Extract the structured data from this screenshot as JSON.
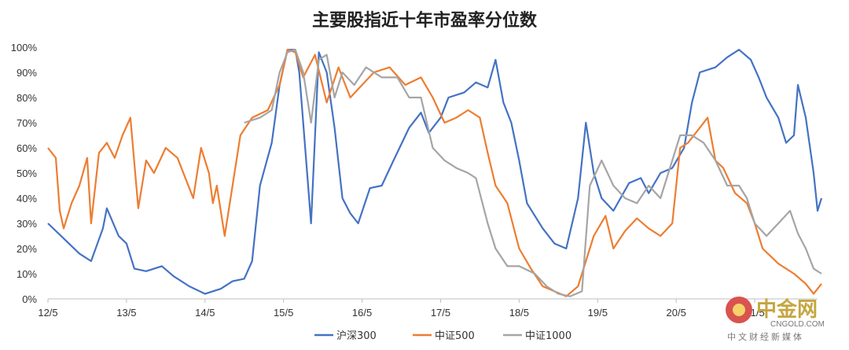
{
  "chart_data": {
    "type": "line",
    "title": "主要股指近十年市盈率分位数",
    "x_ticks": [
      "12/5",
      "13/5",
      "14/5",
      "15/5",
      "16/5",
      "17/5",
      "18/5",
      "19/5",
      "20/5",
      "21/5"
    ],
    "y_ticks": [
      "0%",
      "10%",
      "20%",
      "30%",
      "40%",
      "50%",
      "60%",
      "70%",
      "80%",
      "90%",
      "100%"
    ],
    "ylim": [
      0,
      100
    ],
    "xlim": [
      0,
      9.8
    ],
    "grid": false,
    "legend_position": "bottom",
    "series": [
      {
        "name": "沪深300",
        "color": "#4472c4",
        "points": [
          [
            0,
            30
          ],
          [
            0.2,
            24
          ],
          [
            0.4,
            18
          ],
          [
            0.55,
            15
          ],
          [
            0.7,
            28
          ],
          [
            0.75,
            36
          ],
          [
            0.9,
            25
          ],
          [
            1.0,
            22
          ],
          [
            1.1,
            12
          ],
          [
            1.25,
            11
          ],
          [
            1.45,
            13
          ],
          [
            1.6,
            9
          ],
          [
            1.8,
            5
          ],
          [
            2.0,
            2
          ],
          [
            2.2,
            4
          ],
          [
            2.35,
            7
          ],
          [
            2.5,
            8
          ],
          [
            2.6,
            15
          ],
          [
            2.7,
            45
          ],
          [
            2.85,
            62
          ],
          [
            2.95,
            85
          ],
          [
            3.05,
            99
          ],
          [
            3.15,
            99
          ],
          [
            3.2,
            90
          ],
          [
            3.3,
            50
          ],
          [
            3.35,
            30
          ],
          [
            3.45,
            98
          ],
          [
            3.55,
            90
          ],
          [
            3.65,
            68
          ],
          [
            3.75,
            40
          ],
          [
            3.85,
            34
          ],
          [
            3.95,
            30
          ],
          [
            4.1,
            44
          ],
          [
            4.25,
            45
          ],
          [
            4.4,
            55
          ],
          [
            4.6,
            68
          ],
          [
            4.75,
            74
          ],
          [
            4.85,
            66
          ],
          [
            5.0,
            72
          ],
          [
            5.1,
            80
          ],
          [
            5.3,
            82
          ],
          [
            5.45,
            86
          ],
          [
            5.6,
            84
          ],
          [
            5.7,
            95
          ],
          [
            5.8,
            78
          ],
          [
            5.9,
            70
          ],
          [
            6.0,
            55
          ],
          [
            6.1,
            38
          ],
          [
            6.3,
            28
          ],
          [
            6.45,
            22
          ],
          [
            6.6,
            20
          ],
          [
            6.75,
            40
          ],
          [
            6.85,
            70
          ],
          [
            6.95,
            50
          ],
          [
            7.05,
            40
          ],
          [
            7.2,
            35
          ],
          [
            7.4,
            46
          ],
          [
            7.55,
            48
          ],
          [
            7.65,
            42
          ],
          [
            7.8,
            50
          ],
          [
            7.95,
            52
          ],
          [
            8.1,
            60
          ],
          [
            8.2,
            78
          ],
          [
            8.3,
            90
          ],
          [
            8.5,
            92
          ],
          [
            8.65,
            96
          ],
          [
            8.8,
            99
          ],
          [
            8.95,
            95
          ],
          [
            9.05,
            88
          ],
          [
            9.15,
            80
          ],
          [
            9.3,
            72
          ],
          [
            9.4,
            62
          ],
          [
            9.5,
            65
          ],
          [
            9.55,
            85
          ],
          [
            9.65,
            72
          ],
          [
            9.75,
            50
          ],
          [
            9.8,
            35
          ],
          [
            9.85,
            40
          ]
        ]
      },
      {
        "name": "中证500",
        "color": "#ed7d31",
        "points": [
          [
            0,
            60
          ],
          [
            0.1,
            56
          ],
          [
            0.15,
            35
          ],
          [
            0.2,
            28
          ],
          [
            0.3,
            38
          ],
          [
            0.4,
            45
          ],
          [
            0.5,
            56
          ],
          [
            0.55,
            30
          ],
          [
            0.65,
            58
          ],
          [
            0.75,
            62
          ],
          [
            0.85,
            56
          ],
          [
            0.95,
            65
          ],
          [
            1.05,
            72
          ],
          [
            1.15,
            36
          ],
          [
            1.25,
            55
          ],
          [
            1.35,
            50
          ],
          [
            1.5,
            60
          ],
          [
            1.65,
            56
          ],
          [
            1.75,
            48
          ],
          [
            1.85,
            40
          ],
          [
            1.95,
            60
          ],
          [
            2.05,
            50
          ],
          [
            2.1,
            38
          ],
          [
            2.15,
            45
          ],
          [
            2.25,
            25
          ],
          [
            2.35,
            45
          ],
          [
            2.45,
            65
          ],
          [
            2.6,
            72
          ],
          [
            2.8,
            75
          ],
          [
            2.95,
            85
          ],
          [
            3.05,
            99
          ],
          [
            3.15,
            98
          ],
          [
            3.25,
            88
          ],
          [
            3.4,
            97
          ],
          [
            3.55,
            78
          ],
          [
            3.7,
            92
          ],
          [
            3.85,
            80
          ],
          [
            4.0,
            85
          ],
          [
            4.15,
            90
          ],
          [
            4.35,
            92
          ],
          [
            4.55,
            85
          ],
          [
            4.75,
            88
          ],
          [
            4.9,
            80
          ],
          [
            5.05,
            70
          ],
          [
            5.2,
            72
          ],
          [
            5.35,
            75
          ],
          [
            5.5,
            72
          ],
          [
            5.6,
            58
          ],
          [
            5.7,
            45
          ],
          [
            5.85,
            38
          ],
          [
            6.0,
            20
          ],
          [
            6.15,
            12
          ],
          [
            6.3,
            5
          ],
          [
            6.45,
            3
          ],
          [
            6.6,
            1
          ],
          [
            6.75,
            5
          ],
          [
            6.85,
            15
          ],
          [
            6.95,
            25
          ],
          [
            7.1,
            33
          ],
          [
            7.2,
            20
          ],
          [
            7.35,
            27
          ],
          [
            7.5,
            32
          ],
          [
            7.65,
            28
          ],
          [
            7.8,
            25
          ],
          [
            7.95,
            30
          ],
          [
            8.05,
            60
          ],
          [
            8.15,
            62
          ],
          [
            8.3,
            68
          ],
          [
            8.4,
            72
          ],
          [
            8.5,
            55
          ],
          [
            8.6,
            52
          ],
          [
            8.75,
            42
          ],
          [
            8.9,
            38
          ],
          [
            9.0,
            30
          ],
          [
            9.1,
            20
          ],
          [
            9.3,
            14
          ],
          [
            9.5,
            10
          ],
          [
            9.65,
            6
          ],
          [
            9.75,
            2
          ],
          [
            9.85,
            6
          ]
        ]
      },
      {
        "name": "中证1000",
        "color": "#a5a5a5",
        "points": [
          [
            2.5,
            70
          ],
          [
            2.7,
            72
          ],
          [
            2.85,
            75
          ],
          [
            2.95,
            90
          ],
          [
            3.05,
            98
          ],
          [
            3.15,
            99
          ],
          [
            3.25,
            90
          ],
          [
            3.35,
            70
          ],
          [
            3.45,
            95
          ],
          [
            3.55,
            97
          ],
          [
            3.65,
            80
          ],
          [
            3.75,
            90
          ],
          [
            3.9,
            85
          ],
          [
            4.05,
            92
          ],
          [
            4.25,
            88
          ],
          [
            4.45,
            88
          ],
          [
            4.6,
            80
          ],
          [
            4.75,
            80
          ],
          [
            4.9,
            60
          ],
          [
            5.05,
            55
          ],
          [
            5.2,
            52
          ],
          [
            5.35,
            50
          ],
          [
            5.45,
            48
          ],
          [
            5.6,
            30
          ],
          [
            5.7,
            20
          ],
          [
            5.85,
            13
          ],
          [
            6.0,
            13
          ],
          [
            6.2,
            10
          ],
          [
            6.35,
            5
          ],
          [
            6.5,
            2
          ],
          [
            6.65,
            1
          ],
          [
            6.8,
            3
          ],
          [
            6.9,
            45
          ],
          [
            7.05,
            55
          ],
          [
            7.2,
            45
          ],
          [
            7.35,
            40
          ],
          [
            7.5,
            38
          ],
          [
            7.65,
            45
          ],
          [
            7.8,
            40
          ],
          [
            7.95,
            55
          ],
          [
            8.05,
            65
          ],
          [
            8.2,
            65
          ],
          [
            8.35,
            62
          ],
          [
            8.5,
            55
          ],
          [
            8.65,
            45
          ],
          [
            8.8,
            45
          ],
          [
            8.9,
            40
          ],
          [
            9.0,
            30
          ],
          [
            9.15,
            25
          ],
          [
            9.3,
            30
          ],
          [
            9.45,
            35
          ],
          [
            9.55,
            26
          ],
          [
            9.65,
            20
          ],
          [
            9.75,
            12
          ],
          [
            9.85,
            10
          ]
        ]
      }
    ]
  },
  "watermark": {
    "brand": "中金网",
    "site": "CNGOLD.COM",
    "slogan": "中文财经新媒体"
  }
}
